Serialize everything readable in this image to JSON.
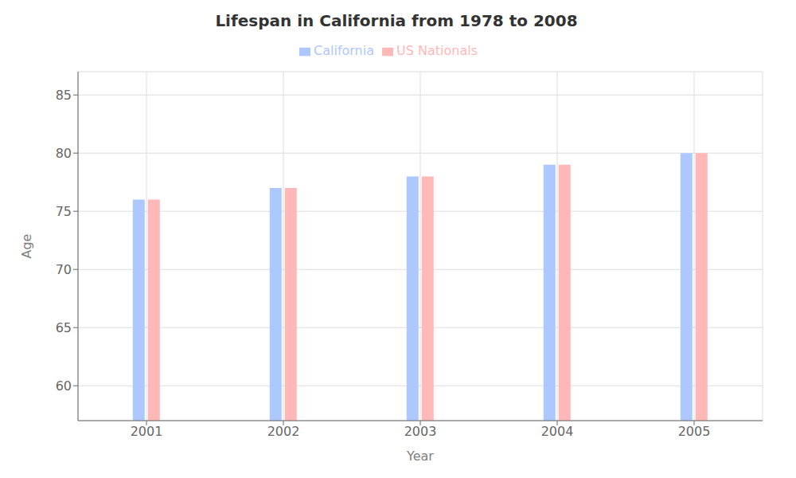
{
  "chart_data": {
    "type": "bar",
    "title": "Lifespan in California from 1978 to 2008",
    "x_label": "Year",
    "y_label": "Age",
    "categories": [
      "2001",
      "2002",
      "2003",
      "2004",
      "2005"
    ],
    "series": [
      {
        "name": "California",
        "color": "#adc8ff",
        "values": [
          76,
          77,
          78,
          79,
          80
        ]
      },
      {
        "name": "US Nationals",
        "color": "#ffb8b8",
        "values": [
          76,
          77,
          78,
          79,
          80
        ]
      }
    ],
    "ylim": [
      57,
      87
    ],
    "yticks": [
      60,
      65,
      70,
      75,
      80,
      85
    ],
    "grid": true,
    "legend": "top"
  }
}
